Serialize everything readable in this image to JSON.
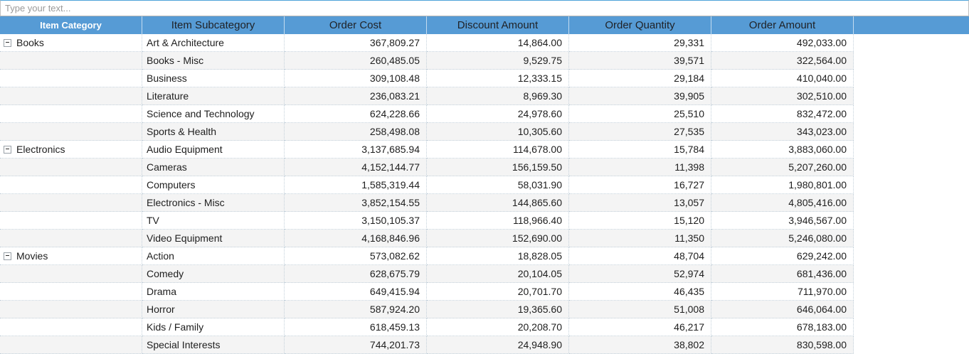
{
  "filter": {
    "placeholder": "Type your text..."
  },
  "colors": {
    "header_bg": "#569bd5",
    "header_field_text": "#ffffff",
    "row_stripe": "#f4f4f4",
    "grid_border": "#c3d0da",
    "filter_top_border": "#4ea3d9"
  },
  "table": {
    "columns": [
      {
        "label": "Item Category"
      },
      {
        "label": "Item Subcategory"
      },
      {
        "label": "Order Cost"
      },
      {
        "label": "Discount Amount"
      },
      {
        "label": "Order Quantity"
      },
      {
        "label": "Order Amount"
      }
    ],
    "groups": [
      {
        "category": "Books",
        "expander": "minus",
        "rows": [
          {
            "subcategory": "Art & Architecture",
            "order_cost": "367,809.27",
            "discount_amount": "14,864.00",
            "order_quantity": "29,331",
            "order_amount": "492,033.00"
          },
          {
            "subcategory": "Books - Misc",
            "order_cost": "260,485.05",
            "discount_amount": "9,529.75",
            "order_quantity": "39,571",
            "order_amount": "322,564.00"
          },
          {
            "subcategory": "Business",
            "order_cost": "309,108.48",
            "discount_amount": "12,333.15",
            "order_quantity": "29,184",
            "order_amount": "410,040.00"
          },
          {
            "subcategory": "Literature",
            "order_cost": "236,083.21",
            "discount_amount": "8,969.30",
            "order_quantity": "39,905",
            "order_amount": "302,510.00"
          },
          {
            "subcategory": "Science and Technology",
            "order_cost": "624,228.66",
            "discount_amount": "24,978.60",
            "order_quantity": "25,510",
            "order_amount": "832,472.00"
          },
          {
            "subcategory": "Sports & Health",
            "order_cost": "258,498.08",
            "discount_amount": "10,305.60",
            "order_quantity": "27,535",
            "order_amount": "343,023.00"
          }
        ]
      },
      {
        "category": "Electronics",
        "expander": "minus",
        "rows": [
          {
            "subcategory": "Audio Equipment",
            "order_cost": "3,137,685.94",
            "discount_amount": "114,678.00",
            "order_quantity": "15,784",
            "order_amount": "3,883,060.00"
          },
          {
            "subcategory": "Cameras",
            "order_cost": "4,152,144.77",
            "discount_amount": "156,159.50",
            "order_quantity": "11,398",
            "order_amount": "5,207,260.00"
          },
          {
            "subcategory": "Computers",
            "order_cost": "1,585,319.44",
            "discount_amount": "58,031.90",
            "order_quantity": "16,727",
            "order_amount": "1,980,801.00"
          },
          {
            "subcategory": "Electronics - Misc",
            "order_cost": "3,852,154.55",
            "discount_amount": "144,865.60",
            "order_quantity": "13,057",
            "order_amount": "4,805,416.00"
          },
          {
            "subcategory": "TV",
            "order_cost": "3,150,105.37",
            "discount_amount": "118,966.40",
            "order_quantity": "15,120",
            "order_amount": "3,946,567.00"
          },
          {
            "subcategory": "Video Equipment",
            "order_cost": "4,168,846.96",
            "discount_amount": "152,690.00",
            "order_quantity": "11,350",
            "order_amount": "5,246,080.00"
          }
        ]
      },
      {
        "category": "Movies",
        "expander": "minus",
        "rows": [
          {
            "subcategory": "Action",
            "order_cost": "573,082.62",
            "discount_amount": "18,828.05",
            "order_quantity": "48,704",
            "order_amount": "629,242.00"
          },
          {
            "subcategory": "Comedy",
            "order_cost": "628,675.79",
            "discount_amount": "20,104.05",
            "order_quantity": "52,974",
            "order_amount": "681,436.00"
          },
          {
            "subcategory": "Drama",
            "order_cost": "649,415.94",
            "discount_amount": "20,701.70",
            "order_quantity": "46,435",
            "order_amount": "711,970.00"
          },
          {
            "subcategory": "Horror",
            "order_cost": "587,924.20",
            "discount_amount": "19,365.60",
            "order_quantity": "51,008",
            "order_amount": "646,064.00"
          },
          {
            "subcategory": "Kids / Family",
            "order_cost": "618,459.13",
            "discount_amount": "20,208.70",
            "order_quantity": "46,217",
            "order_amount": "678,183.00"
          },
          {
            "subcategory": "Special Interests",
            "order_cost": "744,201.73",
            "discount_amount": "24,948.90",
            "order_quantity": "38,802",
            "order_amount": "830,598.00"
          }
        ]
      }
    ]
  }
}
